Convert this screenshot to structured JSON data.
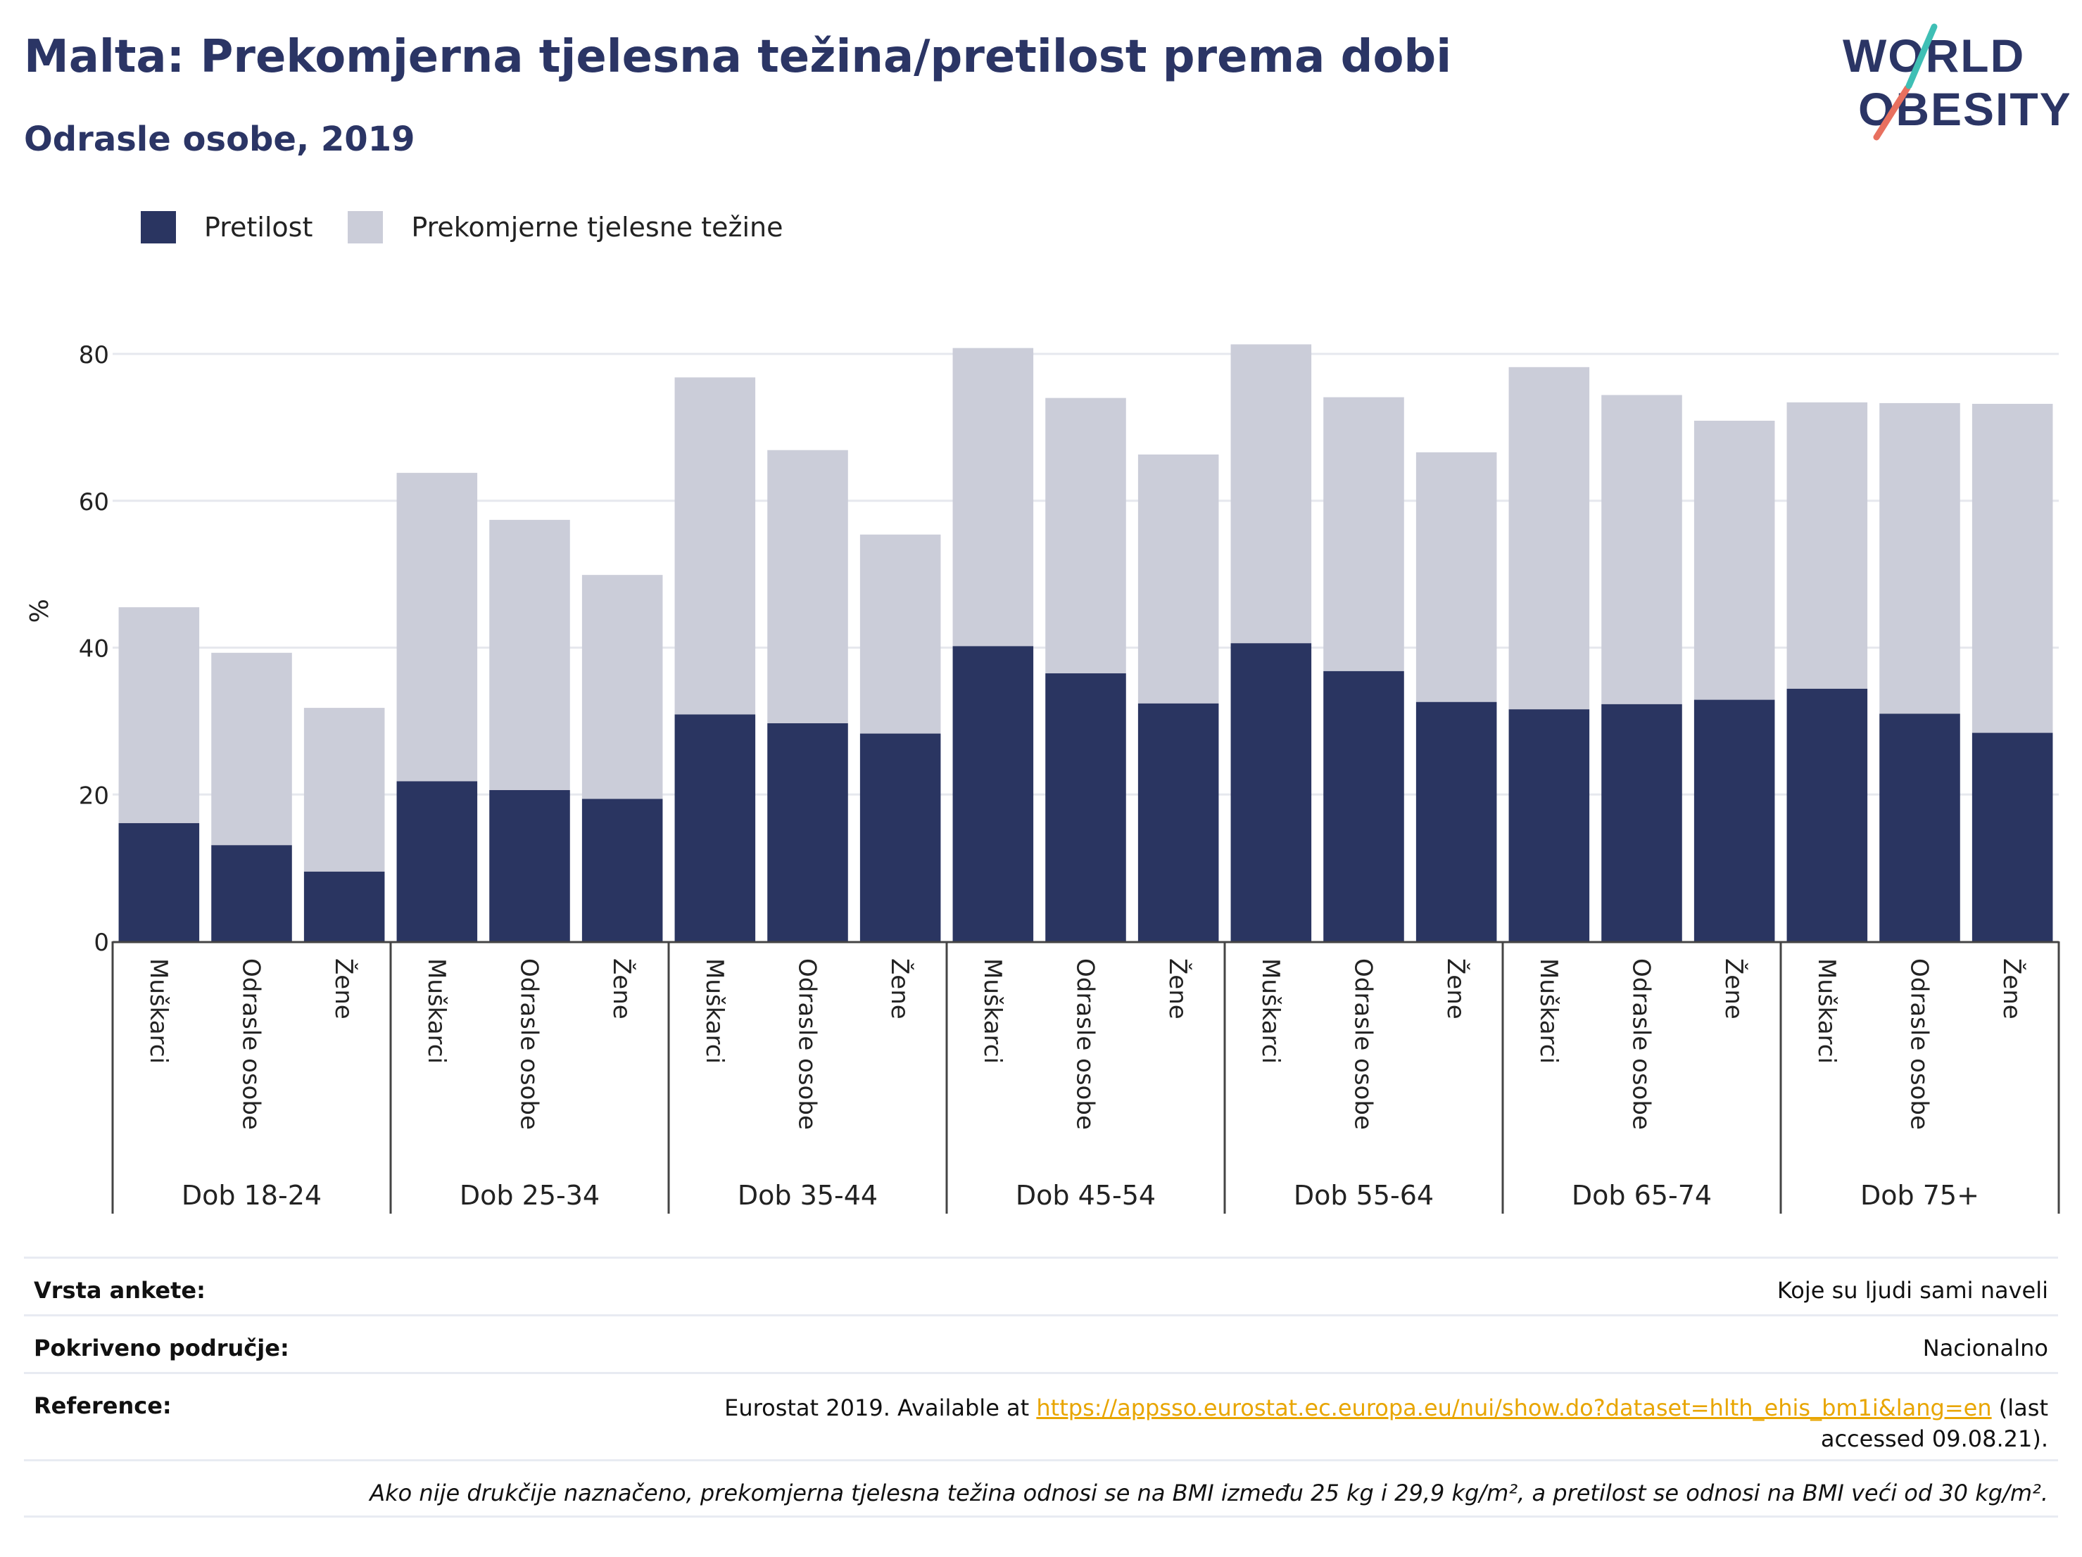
{
  "title": "Malta: Prekomjerna tjelesna težina/pretilost prema dobi",
  "subtitle": "Odrasle osobe, 2019",
  "logo": {
    "line1": "WORLD",
    "line2": "OBESITY"
  },
  "legend": [
    {
      "label": "Pretilost",
      "color": "#2a3561"
    },
    {
      "label": "Prekomjerne tjelesne težine",
      "color": "#cbcdd9"
    }
  ],
  "chart_data": {
    "type": "bar",
    "stacked": true,
    "ylabel": "%",
    "ylim": [
      0,
      85
    ],
    "yticks": [
      0,
      20,
      40,
      60,
      80
    ],
    "grid": true,
    "legend_position": "top-left",
    "groups": [
      {
        "label": "Dob 18-24",
        "categories": [
          "Muškarci",
          "Odrasle osobe",
          "Žene"
        ]
      },
      {
        "label": "Dob 25-34",
        "categories": [
          "Muškarci",
          "Odrasle osobe",
          "Žene"
        ]
      },
      {
        "label": "Dob 35-44",
        "categories": [
          "Muškarci",
          "Odrasle osobe",
          "Žene"
        ]
      },
      {
        "label": "Dob 45-54",
        "categories": [
          "Muškarci",
          "Odrasle osobe",
          "Žene"
        ]
      },
      {
        "label": "Dob 55-64",
        "categories": [
          "Muškarci",
          "Odrasle osobe",
          "Žene"
        ]
      },
      {
        "label": "Dob 65-74",
        "categories": [
          "Muškarci",
          "Odrasle osobe",
          "Žene"
        ]
      },
      {
        "label": "Dob 75+",
        "categories": [
          "Muškarci",
          "Odrasle osobe",
          "Žene"
        ]
      }
    ],
    "series": [
      {
        "name": "Pretilost",
        "color": "#2a3561",
        "values": [
          16.1,
          13.1,
          9.5,
          21.8,
          20.6,
          19.4,
          30.9,
          29.7,
          28.3,
          40.2,
          36.5,
          32.4,
          40.6,
          36.8,
          32.6,
          31.6,
          32.3,
          32.9,
          34.4,
          31.0,
          28.4
        ]
      },
      {
        "name": "Prekomjerne tjelesne težine",
        "color": "#cbcdd9",
        "values": [
          29.4,
          26.2,
          22.3,
          42.0,
          36.8,
          30.5,
          45.9,
          37.2,
          27.1,
          40.6,
          37.5,
          33.9,
          40.7,
          37.3,
          34.0,
          46.6,
          42.1,
          38.0,
          39.0,
          42.3,
          44.8
        ]
      }
    ]
  },
  "info": {
    "survey_label": "Vrsta ankete:",
    "survey_value": "Koje su ljudi sami naveli",
    "coverage_label": "Pokriveno područje:",
    "coverage_value": "Nacionalno",
    "reference_label": "Reference:",
    "reference_prefix": "Eurostat 2019. Available at ",
    "reference_link": "https://appsso.eurostat.ec.europa.eu/nui/show.do?dataset=hlth_ehis_bm1i&lang=en",
    "reference_suffix": " (last accessed 09.08.21).",
    "note": "Ako nije drukčije naznačeno, prekomjerna tjelesna težina odnosi se na BMI između 25 kg i 29,9 kg/m², a pretilost se odnosi na BMI veći od 30 kg/m²."
  }
}
